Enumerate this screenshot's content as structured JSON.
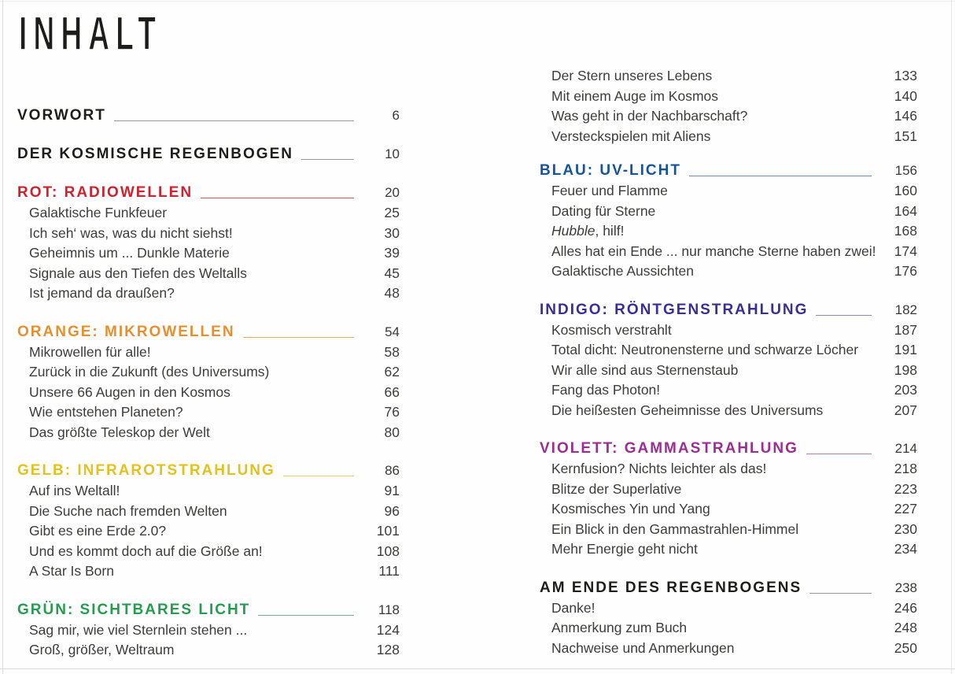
{
  "page_title": "INHALT",
  "colors": {
    "ink": "#1d1d1b",
    "entry_text": "#3d3c3b",
    "neutral_rule": "#999999",
    "rot": "#d0212e",
    "orange": "#e78f2e",
    "gelb": "#e3c21f",
    "gruen": "#279b51",
    "blau": "#15549a",
    "indigo": "#3b2d91",
    "violett": "#9c2d93"
  },
  "toc": {
    "left_column": [
      {
        "id": "vorwort",
        "label": "VORWORT",
        "page": "6",
        "color": "#1d1d1b",
        "rule_color": "#999999",
        "entries": []
      },
      {
        "id": "der-kosmische-regenbogen",
        "label": "DER KOSMISCHE REGENBOGEN",
        "page": "10",
        "color": "#1d1d1b",
        "rule_color": "#999999",
        "entries": []
      },
      {
        "id": "rot-radiowellen",
        "label": "ROT: RADIOWELLEN",
        "page": "20",
        "color": "#d0212e",
        "rule_color": "#d4565e",
        "entries": [
          {
            "text": "Galaktische Funkfeuer",
            "page": "25"
          },
          {
            "text": "Ich seh‘ was, was du nicht siehst!",
            "page": "30"
          },
          {
            "text": "Geheimnis um ... Dunkle Materie",
            "page": "39"
          },
          {
            "text": "Signale aus den Tiefen des Weltalls",
            "page": "45"
          },
          {
            "text": "Ist jemand da draußen?",
            "page": "48"
          }
        ]
      },
      {
        "id": "orange-mikrowellen",
        "label": "ORANGE: MIKROWELLEN",
        "page": "54",
        "color": "#e78f2e",
        "rule_color": "#e9a95f",
        "entries": [
          {
            "text": "Mikrowellen für alle!",
            "page": "58"
          },
          {
            "text": "Zurück in die Zukunft (des Universums)",
            "page": "62"
          },
          {
            "text": "Unsere 66 Augen in den Kosmos",
            "page": "66"
          },
          {
            "text": "Wie entstehen Planeten?",
            "page": "76"
          },
          {
            "text": "Das größte Teleskop der Welt",
            "page": "80"
          }
        ]
      },
      {
        "id": "gelb-infrarotstrahlung",
        "label": "GELB: INFRAROTSTRAHLUNG",
        "page": "86",
        "color": "#e3c21f",
        "rule_color": "#e5cd58",
        "entries": [
          {
            "text": "Auf ins Weltall!",
            "page": "91"
          },
          {
            "text": "Die Suche nach fremden Welten",
            "page": "96"
          },
          {
            "text": "Gibt es eine Erde 2.0?",
            "page": "101"
          },
          {
            "text": "Und es kommt doch auf die Größe an!",
            "page": "108"
          },
          {
            "text": "A Star Is Born",
            "page": "111"
          }
        ]
      },
      {
        "id": "gruen-sichtbares-licht",
        "label": "GRÜN: SICHTBARES LICHT",
        "page": "118",
        "color": "#279b51",
        "rule_color": "#79a98e",
        "entries": [
          {
            "text": "Sag mir, wie viel Sternlein stehen ...",
            "page": "124"
          },
          {
            "text": "Groß, größer, Weltraum",
            "page": "128"
          }
        ]
      }
    ],
    "right_column": [
      {
        "id": "gruen-sichtbares-licht-fortsetzung",
        "label": null,
        "continuation": true,
        "entries": [
          {
            "text": "Der Stern unseres Lebens",
            "page": "133"
          },
          {
            "text": "Mit einem Auge im Kosmos",
            "page": "140"
          },
          {
            "text": "Was geht in der Nachbarschaft?",
            "page": "146"
          },
          {
            "text": "Versteckspielen mit Aliens",
            "page": "151"
          }
        ]
      },
      {
        "id": "blau-uv-licht",
        "label": "BLAU: UV-LICHT",
        "page": "156",
        "color": "#15549a",
        "rule_color": "#6b8cb4",
        "entries": [
          {
            "text": "Feuer und Flamme",
            "page": "160"
          },
          {
            "text": "Dating für Sterne",
            "page": "164"
          },
          {
            "em": "Hubble",
            "text": ", hilf!",
            "page": "168"
          },
          {
            "text": "Alles hat ein Ende ... nur manche Sterne haben zwei!",
            "page": "174"
          },
          {
            "text": "Galaktische Aussichten",
            "page": "176"
          }
        ]
      },
      {
        "id": "indigo-roentgenstrahlung",
        "label": "INDIGO: RÖNTGENSTRAHLUNG",
        "page": "182",
        "color": "#3b2d91",
        "rule_color": "#8d87b3",
        "entries": [
          {
            "text": "Kosmisch verstrahlt",
            "page": "187"
          },
          {
            "text": "Total dicht: Neutronensterne und schwarze Löcher",
            "page": "191"
          },
          {
            "text": "Wir alle sind aus Sternenstaub",
            "page": "198"
          },
          {
            "text": "Fang das Photon!",
            "page": "203"
          },
          {
            "text": "Die heißesten Geheimnisse des Universums",
            "page": "207"
          }
        ]
      },
      {
        "id": "violett-gammastrahlung",
        "label": "VIOLETT: GAMMASTRAHLUNG",
        "page": "214",
        "color": "#9c2d93",
        "rule_color": "#ad82aa",
        "entries": [
          {
            "text": "Kernfusion? Nichts leichter als das!",
            "page": "218"
          },
          {
            "text": "Blitze der Superlative",
            "page": "223"
          },
          {
            "text": "Kosmisches Yin und Yang",
            "page": "227"
          },
          {
            "text": "Ein Blick in den Gammastrahlen-Himmel",
            "page": "230"
          },
          {
            "text": "Mehr Energie geht nicht",
            "page": "234"
          }
        ]
      },
      {
        "id": "am-ende-des-regenbogens",
        "label": "AM ENDE DES REGENBOGENS",
        "page": "238",
        "color": "#1d1d1b",
        "rule_color": "#999999",
        "entries": [
          {
            "text": "Danke!",
            "page": "246"
          },
          {
            "text": "Anmerkung zum Buch",
            "page": "248"
          },
          {
            "text": "Nachweise und Anmerkungen",
            "page": "250"
          }
        ]
      }
    ]
  }
}
